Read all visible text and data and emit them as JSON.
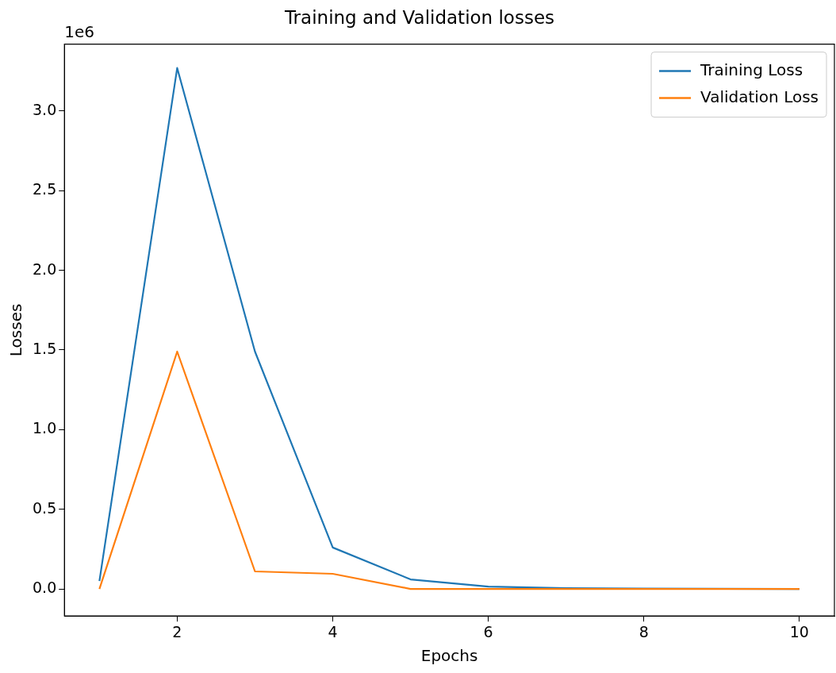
{
  "chart_data": {
    "type": "line",
    "title": "Training and Validation losses",
    "xlabel": "Epochs",
    "ylabel": "Losses",
    "x": [
      1,
      2,
      3,
      4,
      5,
      6,
      7,
      8,
      9,
      10
    ],
    "series": [
      {
        "name": "Training Loss",
        "color": "#1f77b4",
        "values": [
          0.05,
          3.27,
          1.49,
          0.26,
          0.06,
          0.015,
          0.005,
          0.002,
          0.001,
          0
        ]
      },
      {
        "name": "Validation Loss",
        "color": "#ff7f0e",
        "values": [
          0,
          1.49,
          0.11,
          0.095,
          0,
          0,
          0,
          0,
          0,
          0
        ]
      }
    ],
    "xlim": [
      0.55,
      10.45
    ],
    "xticks": [
      2,
      4,
      6,
      8,
      10
    ],
    "ylim": [
      -0.17,
      3.42
    ],
    "yticks": [
      {
        "value": 0,
        "label": "0.0"
      },
      0.5,
      {
        "value": 1,
        "label": "1.0"
      },
      1.5,
      {
        "value": 2,
        "label": "2.0"
      },
      2.5,
      {
        "value": 3,
        "label": "3.0"
      }
    ],
    "annotations": [
      "1e6"
    ],
    "grid": false,
    "legend": "top right",
    "marker": "none",
    "line_style": "solid"
  }
}
